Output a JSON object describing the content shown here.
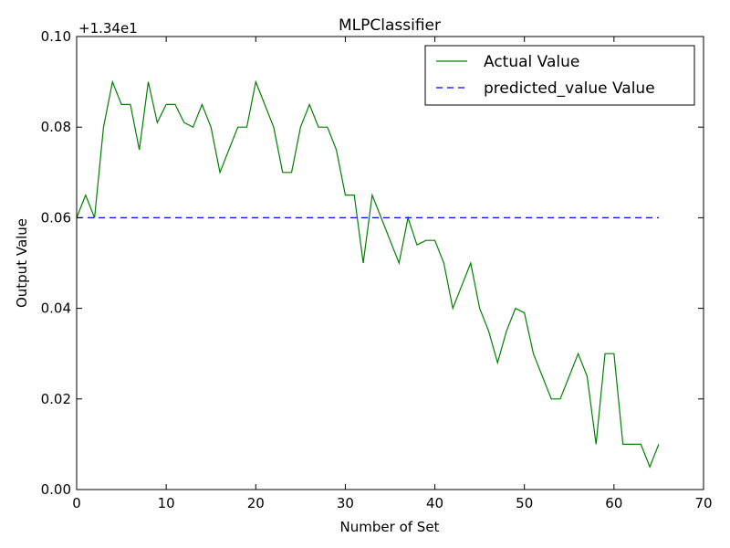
{
  "chart_data": {
    "type": "line",
    "title": "MLPClassifier",
    "xlabel": "Number of Set",
    "ylabel": "Output Value",
    "offset_label": "+1.34e1",
    "xlim": [
      0,
      70
    ],
    "ylim": [
      0.0,
      0.1
    ],
    "xticks": [
      0,
      10,
      20,
      30,
      40,
      50,
      60,
      70
    ],
    "xtick_labels": [
      "0",
      "10",
      "20",
      "30",
      "40",
      "50",
      "60",
      "70"
    ],
    "yticks": [
      0.0,
      0.02,
      0.04,
      0.06,
      0.08,
      0.1
    ],
    "ytick_labels": [
      "0.00",
      "0.02",
      "0.04",
      "0.06",
      "0.08",
      "0.10"
    ],
    "grid": false,
    "legend": "top-right",
    "series": [
      {
        "name": "Actual Value",
        "color": "#008000",
        "style": "solid",
        "x": [
          0,
          1,
          2,
          3,
          4,
          5,
          6,
          7,
          8,
          9,
          10,
          11,
          12,
          13,
          14,
          15,
          16,
          17,
          18,
          19,
          20,
          21,
          22,
          23,
          24,
          25,
          26,
          27,
          28,
          29,
          30,
          31,
          32,
          33,
          34,
          35,
          36,
          37,
          38,
          39,
          40,
          41,
          42,
          43,
          44,
          45,
          46,
          47,
          48,
          49,
          50,
          51,
          52,
          53,
          54,
          55,
          56,
          57,
          58,
          59,
          60,
          61,
          62,
          63,
          64,
          65
        ],
        "values": [
          0.06,
          0.065,
          0.06,
          0.08,
          0.09,
          0.085,
          0.085,
          0.075,
          0.09,
          0.081,
          0.085,
          0.085,
          0.081,
          0.08,
          0.085,
          0.08,
          0.07,
          0.075,
          0.08,
          0.08,
          0.09,
          0.085,
          0.08,
          0.07,
          0.07,
          0.08,
          0.085,
          0.08,
          0.08,
          0.075,
          0.065,
          0.065,
          0.05,
          0.065,
          0.06,
          0.055,
          0.05,
          0.06,
          0.054,
          0.055,
          0.055,
          0.05,
          0.04,
          0.045,
          0.05,
          0.04,
          0.035,
          0.028,
          0.035,
          0.04,
          0.039,
          0.03,
          0.025,
          0.02,
          0.02,
          0.025,
          0.03,
          0.025,
          0.01,
          0.03,
          0.03,
          0.01,
          0.01,
          0.01,
          0.005,
          0.01
        ]
      },
      {
        "name": "predicted_value Value",
        "color": "#0000ff",
        "style": "dashed",
        "x": [
          0,
          65
        ],
        "values": [
          0.06,
          0.06
        ]
      }
    ]
  }
}
